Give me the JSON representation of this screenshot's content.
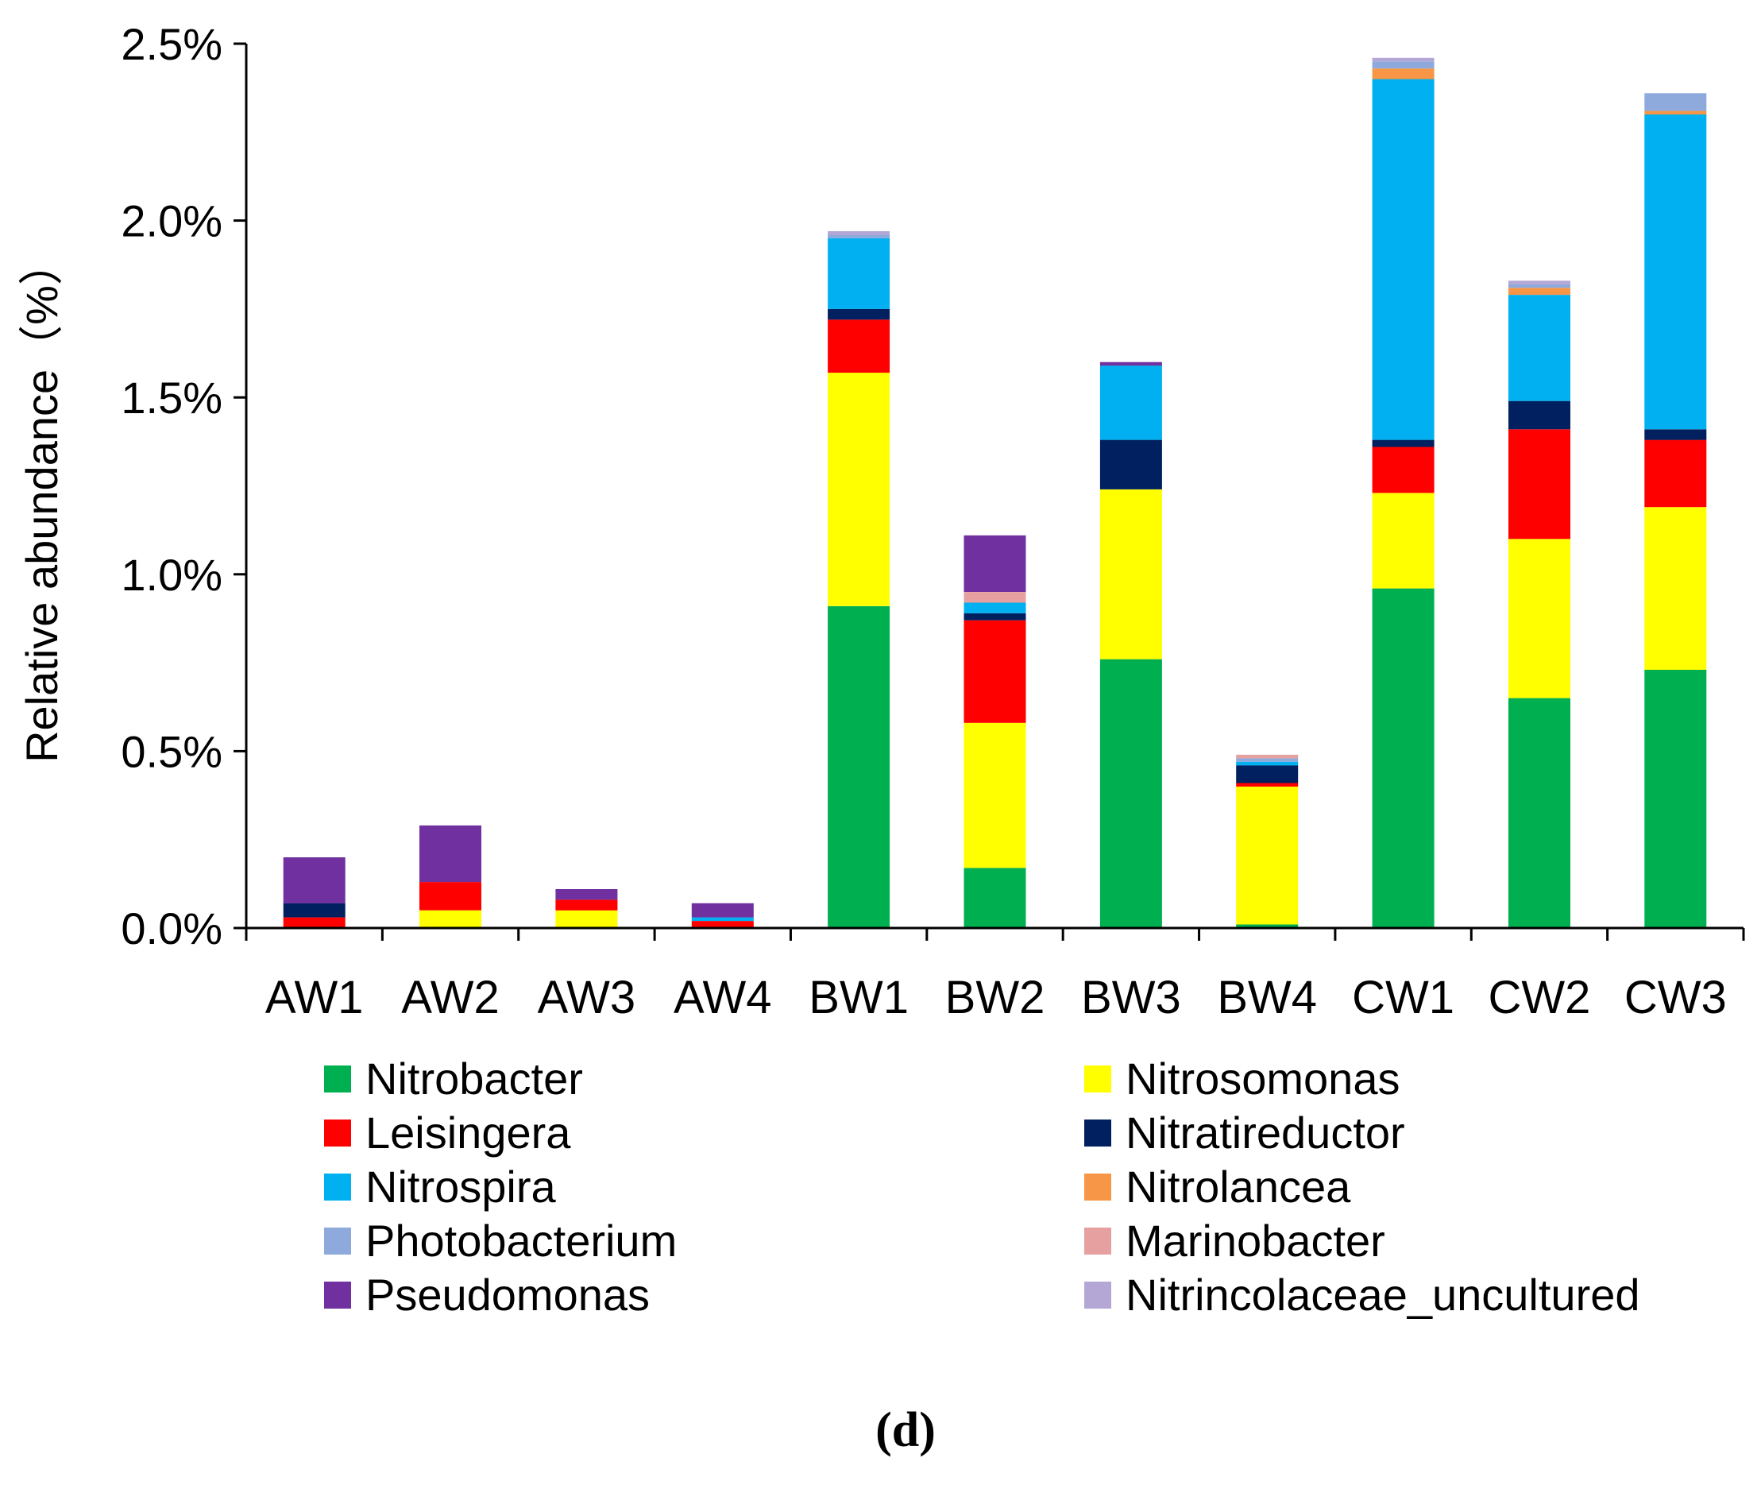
{
  "chart_data": {
    "type": "bar",
    "stacked": true,
    "ylabel": "Relative abundance（%）",
    "ylim": [
      0,
      2.5
    ],
    "yticks": [
      "0.0%",
      "0.5%",
      "1.0%",
      "1.5%",
      "2.0%",
      "2.5%"
    ],
    "ytick_values": [
      0,
      0.5,
      1.0,
      1.5,
      2.0,
      2.5
    ],
    "categories": [
      "AW1",
      "AW2",
      "AW3",
      "AW4",
      "BW1",
      "BW2",
      "BW3",
      "BW4",
      "CW1",
      "CW2",
      "CW3"
    ],
    "series": [
      {
        "name": "Nitrobacter",
        "color": "#00B050",
        "values": [
          0,
          0,
          0,
          0,
          0.91,
          0.17,
          0.76,
          0.01,
          0.96,
          0.65,
          0.73
        ]
      },
      {
        "name": "Nitrosomonas",
        "color": "#FFFF00",
        "values": [
          0,
          0.05,
          0.05,
          0,
          0.66,
          0.41,
          0.48,
          0.39,
          0.27,
          0.45,
          0.46
        ]
      },
      {
        "name": "Leisingera",
        "color": "#FF0000",
        "values": [
          0.03,
          0.08,
          0.03,
          0.02,
          0.15,
          0.29,
          0,
          0.01,
          0.13,
          0.31,
          0.19
        ]
      },
      {
        "name": "Nitratireductor",
        "color": "#002060",
        "values": [
          0.04,
          0,
          0,
          0,
          0.03,
          0.02,
          0.14,
          0.05,
          0.02,
          0.08,
          0.03
        ]
      },
      {
        "name": "Nitrospira",
        "color": "#00B0F0",
        "values": [
          0,
          0,
          0,
          0.01,
          0.2,
          0.03,
          0.21,
          0.01,
          1.02,
          0.3,
          0.89
        ]
      },
      {
        "name": "Nitrolancea",
        "color": "#F79646",
        "values": [
          0,
          0,
          0,
          0,
          0,
          0,
          0,
          0,
          0.03,
          0.02,
          0.01
        ]
      },
      {
        "name": "Photobacterium",
        "color": "#8EA9DB",
        "values": [
          0,
          0,
          0,
          0,
          0.01,
          0,
          0,
          0.01,
          0.02,
          0.01,
          0.05
        ]
      },
      {
        "name": "Marinobacter",
        "color": "#E6A0A0",
        "values": [
          0,
          0,
          0,
          0,
          0,
          0.03,
          0,
          0.01,
          0,
          0,
          0
        ]
      },
      {
        "name": "Pseudomonas",
        "color": "#7030A0",
        "values": [
          0.13,
          0.16,
          0.03,
          0.04,
          0,
          0.16,
          0.01,
          0,
          0,
          0,
          0
        ]
      },
      {
        "name": "Nitrincolaceae_uncultured",
        "color": "#B4A7D6",
        "values": [
          0,
          0,
          0,
          0,
          0.01,
          0,
          0,
          0,
          0.01,
          0.01,
          0
        ]
      }
    ],
    "legend_order": [
      "Nitrobacter",
      "Nitrosomonas",
      "Leisingera",
      "Nitratireductor",
      "Nitrospira",
      "Nitrolancea",
      "Photobacterium",
      "Marinobacter",
      "Pseudomonas",
      "Nitrincolaceae_uncultured"
    ],
    "legend_position": "bottom",
    "grid": false
  },
  "panel_label": "(d)"
}
